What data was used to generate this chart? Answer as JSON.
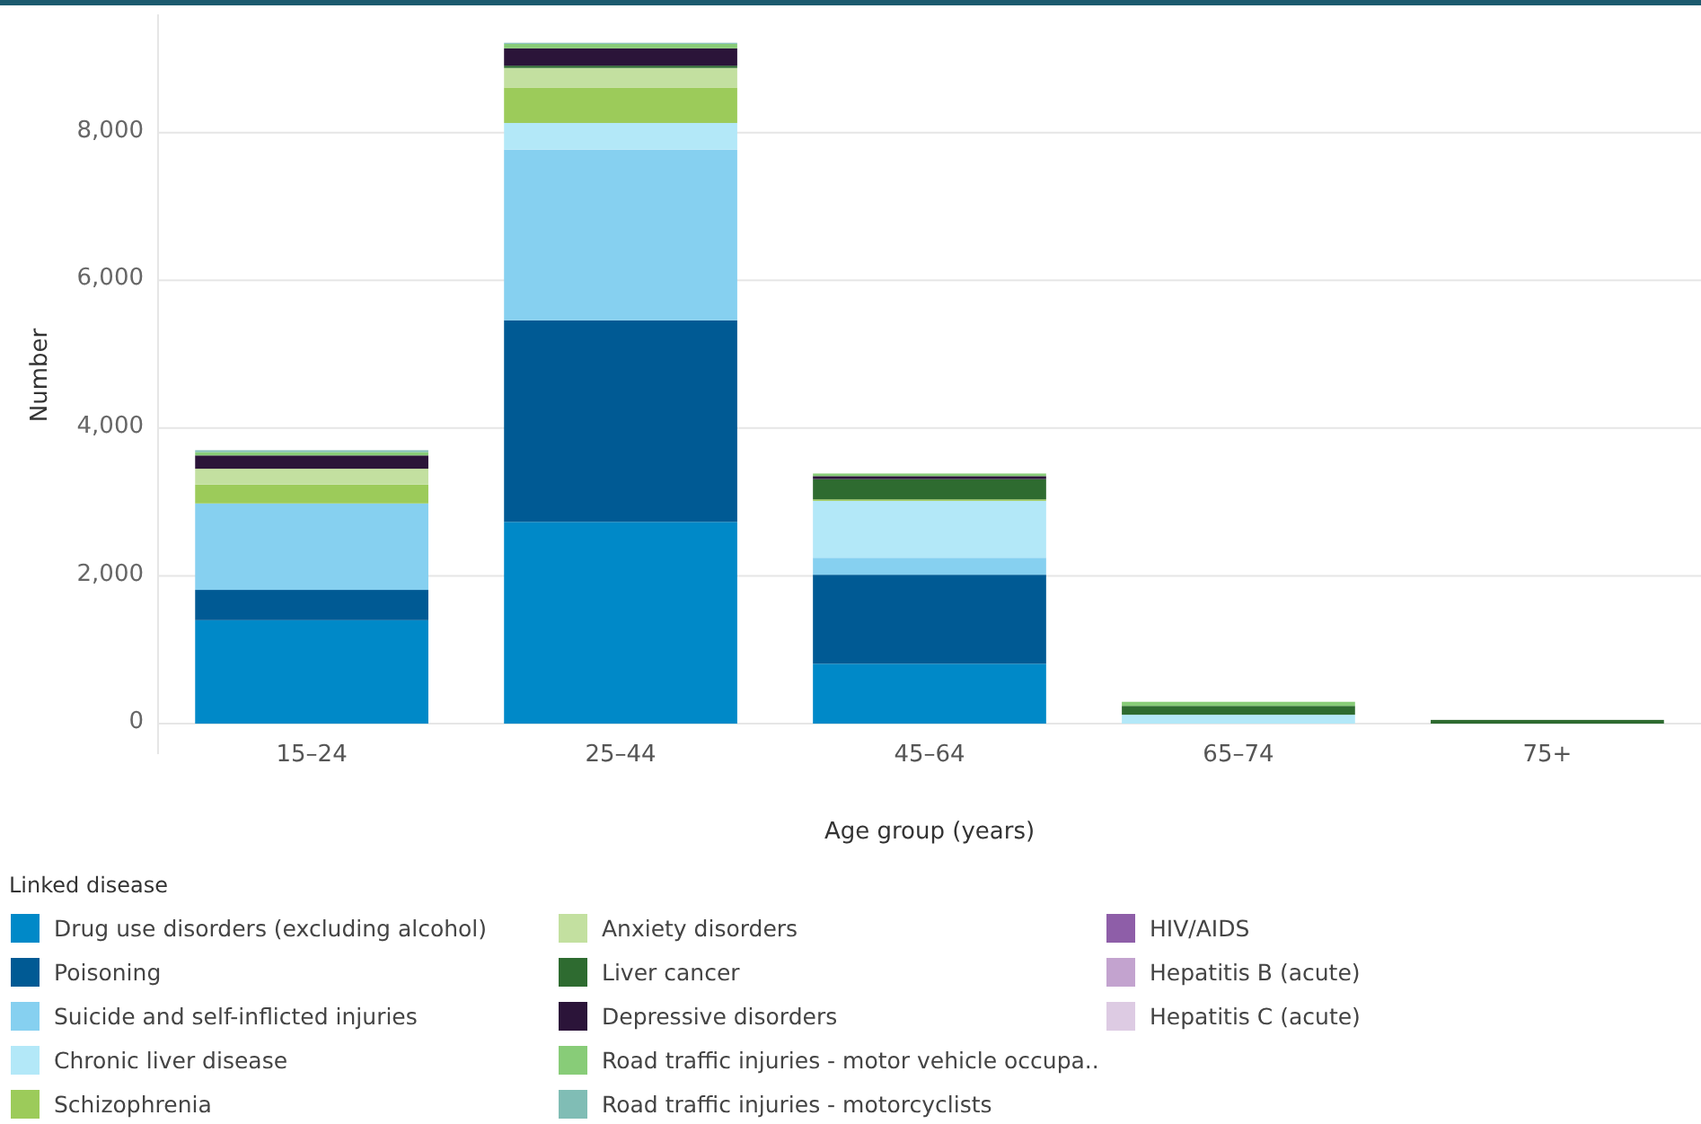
{
  "chart_data": {
    "type": "bar",
    "stacked": true,
    "xlabel": "Age group (years)",
    "ylabel": "Number",
    "legend_title": "Linked disease",
    "legend": "bottom",
    "grid": "y",
    "categories": [
      "15–24",
      "25–44",
      "45–64",
      "65–74",
      "75+"
    ],
    "ylim": [
      0,
      9600
    ],
    "yticks": [
      0,
      {
        "value": 2000,
        "label": "2,000"
      },
      {
        "value": 4000,
        "label": "4,000"
      },
      {
        "value": 6000,
        "label": "6,000"
      },
      {
        "value": 8000,
        "label": "8,000"
      }
    ],
    "series": [
      {
        "name": "Drug use disorders (excluding alcohol)",
        "color": "#0089c8",
        "values": [
          1400,
          2730,
          810,
          0,
          0
        ]
      },
      {
        "name": "Poisoning",
        "color": "#005a94",
        "values": [
          410,
          2730,
          1205,
          0,
          0
        ]
      },
      {
        "name": "Suicide and self-inflicted injuries",
        "color": "#86d0f0",
        "values": [
          1170,
          2310,
          230,
          0,
          0
        ]
      },
      {
        "name": "Chronic liver disease",
        "color": "#b3e8f8",
        "values": [
          0,
          360,
          770,
          120,
          0
        ]
      },
      {
        "name": "Schizophrenia",
        "color": "#9ccb5a",
        "values": [
          255,
          480,
          20,
          0,
          0
        ]
      },
      {
        "name": "Anxiety disorders",
        "color": "#c3e0a0",
        "values": [
          215,
          265,
          0,
          0,
          0
        ]
      },
      {
        "name": "Liver cancer",
        "color": "#2e6b30",
        "values": [
          0,
          30,
          275,
          120,
          50
        ]
      },
      {
        "name": "Depressive disorders",
        "color": "#2b1439",
        "values": [
          180,
          235,
          40,
          0,
          0
        ]
      },
      {
        "name": "Road traffic injuries - motor vehicle occupa..",
        "color": "#88cc78",
        "values": [
          45,
          60,
          35,
          55,
          0
        ]
      },
      {
        "name": "Road traffic injuries - motorcyclists",
        "color": "#80bdb5",
        "values": [
          25,
          15,
          0,
          0,
          0
        ]
      },
      {
        "name": "HIV/AIDS",
        "color": "#8e5ea8",
        "values": [
          0,
          0,
          0,
          0,
          0
        ]
      },
      {
        "name": "Hepatitis B (acute)",
        "color": "#c3a3cf",
        "values": [
          0,
          0,
          0,
          0,
          0
        ]
      },
      {
        "name": "Hepatitis C (acute)",
        "color": "#ddcbe3",
        "values": [
          0,
          0,
          0,
          0,
          0
        ]
      }
    ]
  }
}
